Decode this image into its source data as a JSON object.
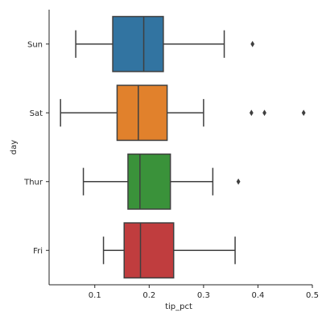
{
  "chart_data": {
    "type": "box",
    "orientation": "horizontal",
    "xlabel": "tip_pct",
    "ylabel": "day",
    "xlim": [
      0.016,
      0.5
    ],
    "xticks": [
      0.1,
      0.2,
      0.3,
      0.4,
      0.5
    ],
    "xtick_labels": [
      "0.1",
      "0.2",
      "0.3",
      "0.4",
      "0.5"
    ],
    "categories": [
      "Sun",
      "Sat",
      "Thur",
      "Fri"
    ],
    "grid": false,
    "series": [
      {
        "name": "Sun",
        "color": "#3274a1",
        "whisker_low": 0.065,
        "q1": 0.133,
        "median": 0.19,
        "q3": 0.226,
        "whisker_high": 0.338,
        "outliers": [
          0.39
        ]
      },
      {
        "name": "Sat",
        "color": "#e1812c",
        "whisker_low": 0.037,
        "q1": 0.141,
        "median": 0.18,
        "q3": 0.233,
        "whisker_high": 0.3,
        "outliers": [
          0.388,
          0.412,
          0.484
        ]
      },
      {
        "name": "Thur",
        "color": "#3a923a",
        "whisker_low": 0.079,
        "q1": 0.161,
        "median": 0.183,
        "q3": 0.239,
        "whisker_high": 0.317,
        "outliers": [
          0.364
        ]
      },
      {
        "name": "Fri",
        "color": "#c03d3e",
        "whisker_low": 0.116,
        "q1": 0.154,
        "median": 0.184,
        "q3": 0.245,
        "whisker_high": 0.358,
        "outliers": []
      }
    ]
  }
}
